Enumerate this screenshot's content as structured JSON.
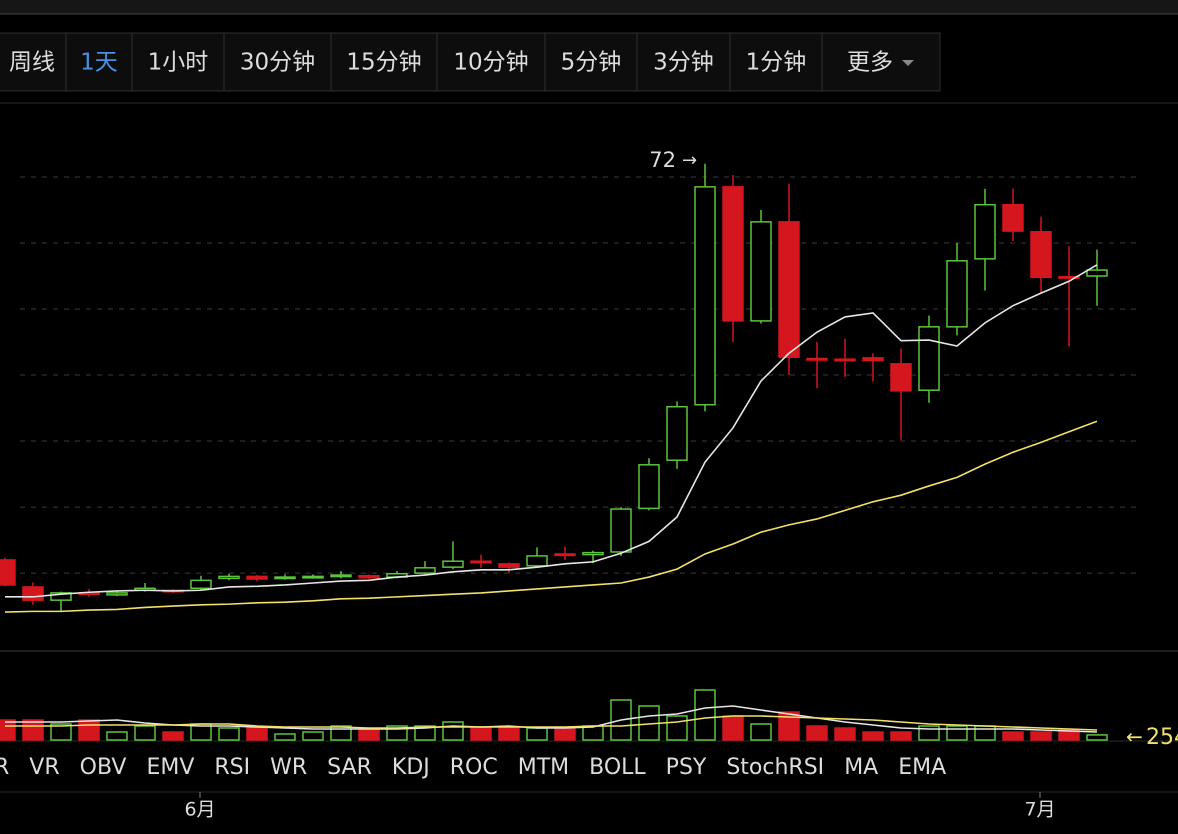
{
  "tabs": [
    "周线",
    "1天",
    "1小时",
    "30分钟",
    "15分钟",
    "10分钟",
    "5分钟",
    "3分钟",
    "1分钟",
    "更多"
  ],
  "active_tab": 1,
  "indicators": [
    "R",
    "VR",
    "OBV",
    "EMV",
    "RSI",
    "WR",
    "SAR",
    "KDJ",
    "ROC",
    "MTM",
    "BOLL",
    "PSY",
    "StochRSI",
    "MA",
    "EMA"
  ],
  "chart_data": {
    "type": "candlestick",
    "categories": [
      null,
      null,
      null,
      null,
      null,
      null,
      null,
      "6月",
      null,
      null,
      null,
      null,
      null,
      null,
      null,
      null,
      null,
      null,
      null,
      null,
      null,
      null,
      null,
      null,
      null,
      null,
      null,
      null,
      null,
      null,
      null,
      null,
      null,
      null,
      null,
      null,
      null,
      "7月",
      null,
      null
    ],
    "open": [
      12.0,
      7.9,
      5.9,
      7.0,
      6.7,
      7.4,
      7.4,
      7.7,
      9.2,
      9.5,
      9.2,
      9.3,
      9.5,
      9.6,
      9.4,
      10.0,
      10.9,
      11.8,
      11.4,
      11.1,
      12.9,
      12.8,
      13.2,
      19.8,
      27.1,
      35.5,
      68.5,
      48.2,
      63.2,
      42.5,
      42.4,
      42.6,
      41.7,
      37.7,
      47.3,
      57.6,
      65.8,
      61.7,
      54.9,
      55.0
    ],
    "high": [
      12.3,
      8.6,
      7.2,
      7.6,
      7.3,
      8.5,
      7.6,
      9.6,
      9.9,
      9.7,
      9.8,
      9.8,
      10.3,
      9.8,
      10.3,
      11.8,
      14.8,
      12.8,
      11.6,
      13.9,
      14.0,
      13.4,
      20.0,
      27.4,
      36.0,
      72,
      70.3,
      65.0,
      69.0,
      45.0,
      45.5,
      43.3,
      44.0,
      49.0,
      60.0,
      68.2,
      68.2,
      64.0,
      59.5,
      59.0
    ],
    "low": [
      8.0,
      5.2,
      4.2,
      6.4,
      6.5,
      7.2,
      7.0,
      7.5,
      8.9,
      8.8,
      9.0,
      9.2,
      9.2,
      9.1,
      9.2,
      9.8,
      10.6,
      10.8,
      10.0,
      10.9,
      12.0,
      11.5,
      12.6,
      19.5,
      25.8,
      34.5,
      45.0,
      47.8,
      40.0,
      38.0,
      39.7,
      39.0,
      30.2,
      35.8,
      46.0,
      52.8,
      60.3,
      52.3,
      44.3,
      50.5
    ],
    "close": [
      8.2,
      5.9,
      7.0,
      6.9,
      7.0,
      7.7,
      7.2,
      8.9,
      9.5,
      9.1,
      9.4,
      9.5,
      9.7,
      9.3,
      9.9,
      10.8,
      11.8,
      11.6,
      10.9,
      12.6,
      12.7,
      13.1,
      19.7,
      26.4,
      35.2,
      68.5,
      48.2,
      63.2,
      42.7,
      42.3,
      42.3,
      42.2,
      37.6,
      47.3,
      57.3,
      65.8,
      61.8,
      54.8,
      54.7,
      55.9
    ],
    "color_up": "#5cc43c",
    "color_down": "#d4161e",
    "lines": [
      {
        "color": "#e6e6e6",
        "values": [
          6.4,
          6.4,
          6.8,
          7.1,
          7.3,
          7.4,
          7.3,
          7.4,
          7.9,
          8.0,
          8.2,
          8.5,
          8.8,
          8.9,
          9.4,
          9.7,
          10.2,
          10.5,
          10.5,
          10.9,
          11.4,
          11.7,
          13.0,
          14.8,
          18.5,
          26.8,
          32.0,
          39.1,
          43.3,
          46.5,
          48.8,
          49.4,
          45.2,
          45.3,
          44.4,
          47.9,
          50.5,
          52.4,
          54.2,
          56.7
        ]
      },
      {
        "color": "#f2e06a",
        "values": [
          4.1,
          4.2,
          4.2,
          4.4,
          4.5,
          4.8,
          5.0,
          5.2,
          5.3,
          5.5,
          5.6,
          5.8,
          6.1,
          6.2,
          6.4,
          6.6,
          6.8,
          7.0,
          7.3,
          7.6,
          7.9,
          8.2,
          8.5,
          9.4,
          10.6,
          12.9,
          14.4,
          16.2,
          17.3,
          18.2,
          19.5,
          20.8,
          21.8,
          23.2,
          24.5,
          26.5,
          28.3,
          29.8,
          31.4,
          33.0
        ]
      }
    ],
    "ylim": [
      -1.8,
      80.9
    ],
    "grid_lines": [
      10,
      20,
      30,
      40,
      50,
      60,
      70
    ],
    "volume": {
      "values": [
        1000,
        1000,
        800,
        1000,
        400,
        700,
        400,
        800,
        600,
        600,
        300,
        400,
        700,
        500,
        700,
        700,
        900,
        600,
        600,
        600,
        600,
        700,
        2000,
        1700,
        1200,
        2500,
        1200,
        800,
        1400,
        700,
        600,
        400,
        400,
        700,
        700,
        700,
        400,
        400,
        500,
        254
      ],
      "ylim": [
        0,
        4450
      ],
      "lines": [
        {
          "color": "#e6e6e6",
          "values": [
            900,
            900,
            900,
            950,
            1000,
            850,
            750,
            700,
            700,
            650,
            600,
            550,
            550,
            550,
            550,
            600,
            700,
            650,
            700,
            600,
            600,
            650,
            1000,
            1200,
            1300,
            1600,
            1700,
            1500,
            1300,
            1100,
            900,
            750,
            600,
            550,
            550,
            550,
            550,
            500,
            450,
            400
          ]
        },
        {
          "color": "#f2e06a",
          "values": [
            700,
            700,
            700,
            750,
            750,
            750,
            750,
            800,
            800,
            700,
            650,
            650,
            650,
            600,
            600,
            650,
            650,
            650,
            650,
            650,
            650,
            700,
            700,
            800,
            900,
            1100,
            1200,
            1200,
            1150,
            1100,
            1050,
            1000,
            900,
            800,
            750,
            700,
            650,
            600,
            550,
            500
          ]
        }
      ]
    }
  }
}
